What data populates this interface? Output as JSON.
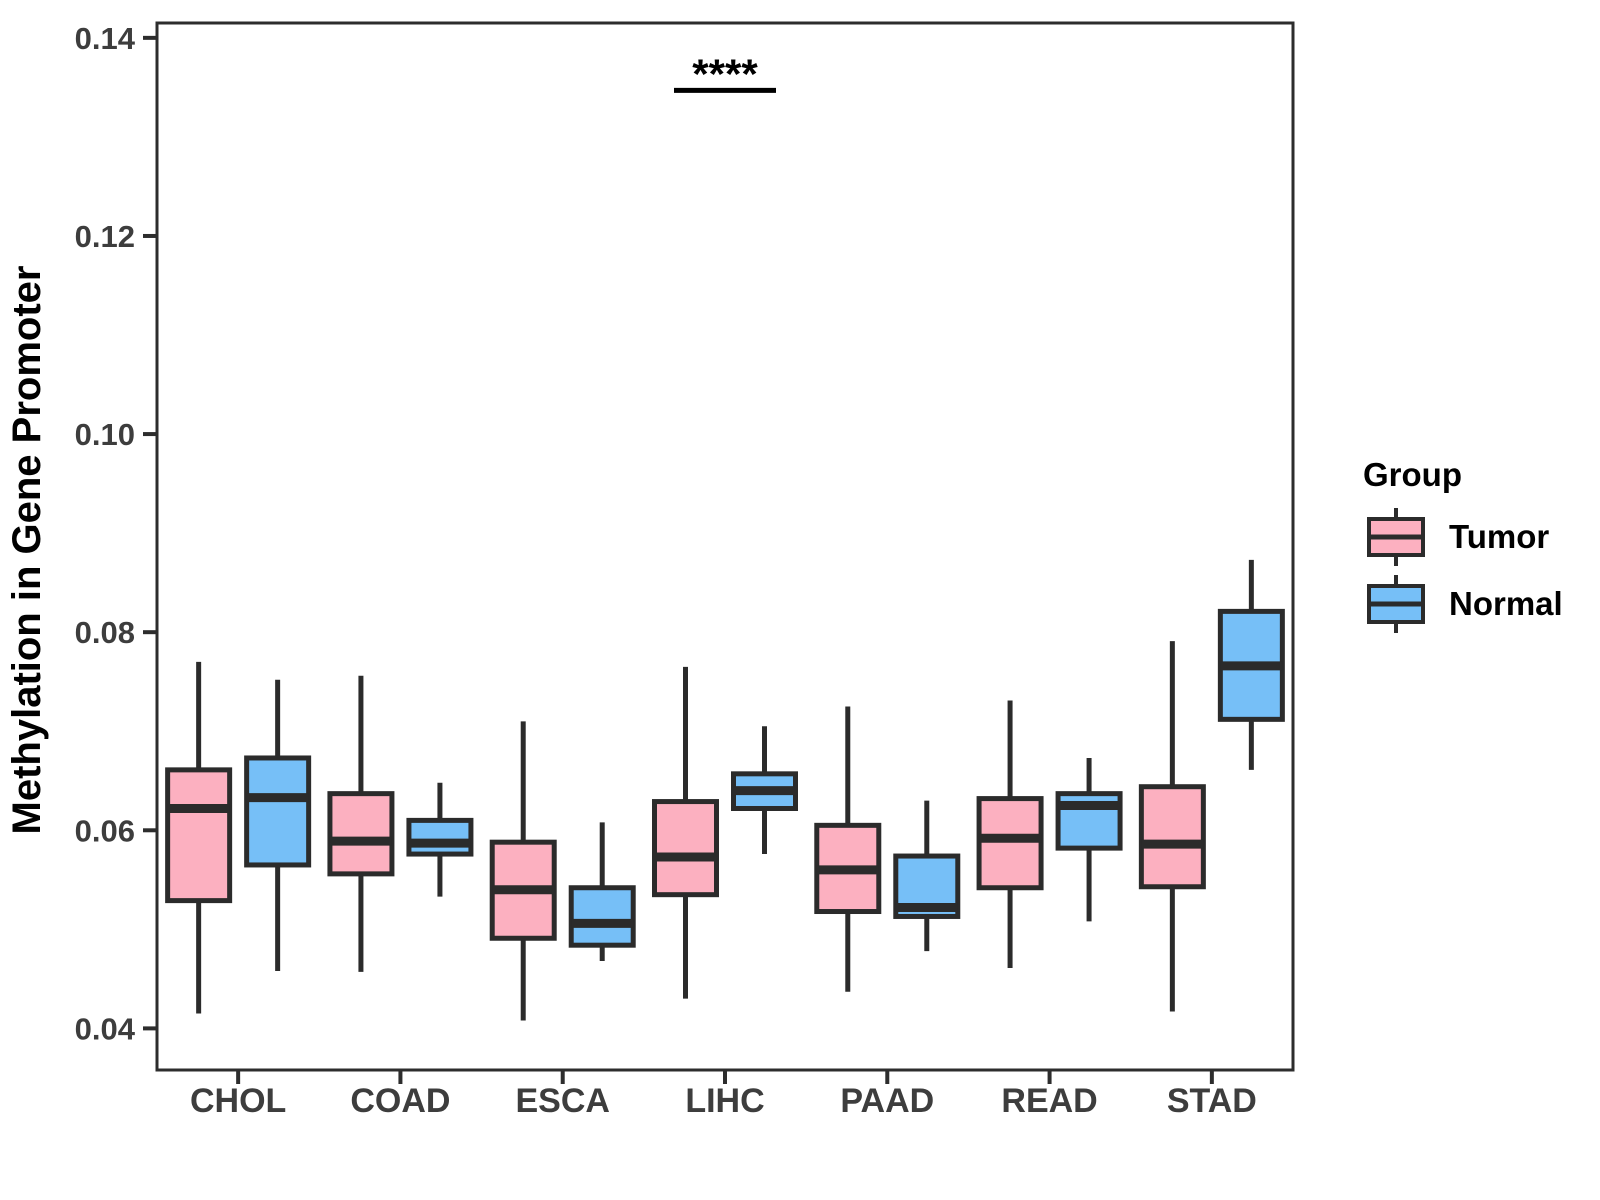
{
  "chart_data": {
    "type": "boxplot",
    "title": "",
    "xlabel": "",
    "ylabel": "Methylation in Gene Promoter",
    "categories": [
      "CHOL",
      "COAD",
      "ESCA",
      "LIHC",
      "PAAD",
      "READ",
      "STAD"
    ],
    "groups": [
      "Tumor",
      "Normal"
    ],
    "y_ticks": [
      0.04,
      0.06,
      0.08,
      0.1,
      0.12,
      0.14
    ],
    "y_tick_labels": [
      "0.04",
      "0.06",
      "0.08",
      "0.10",
      "0.12",
      "0.14"
    ],
    "ylim": [
      0.0358,
      0.1415
    ],
    "grid": false,
    "legend": {
      "title": "Group",
      "position": "right",
      "items": [
        "Tumor",
        "Normal"
      ]
    },
    "colors": {
      "Tumor": "#FCB0C0",
      "Normal": "#76BFF7",
      "box_stroke": "#2B2B2B",
      "axis": "#2D2D2D",
      "tick_label": "#3D3D3D",
      "text": "#000000"
    },
    "significance": {
      "text": "****",
      "category": "LIHC",
      "compares": [
        "Tumor",
        "Normal"
      ],
      "bar_y": 0.1347
    },
    "series": [
      {
        "name": "Tumor",
        "boxes": [
          {
            "category": "CHOL",
            "whisker_low": 0.0415,
            "q1": 0.0529,
            "median": 0.0622,
            "q3": 0.0661,
            "whisker_high": 0.077
          },
          {
            "category": "COAD",
            "whisker_low": 0.0457,
            "q1": 0.0556,
            "median": 0.0589,
            "q3": 0.0637,
            "whisker_high": 0.0756
          },
          {
            "category": "ESCA",
            "whisker_low": 0.0408,
            "q1": 0.0491,
            "median": 0.054,
            "q3": 0.0588,
            "whisker_high": 0.071
          },
          {
            "category": "LIHC",
            "whisker_low": 0.043,
            "q1": 0.0535,
            "median": 0.0573,
            "q3": 0.0629,
            "whisker_high": 0.0765
          },
          {
            "category": "PAAD",
            "whisker_low": 0.0437,
            "q1": 0.0518,
            "median": 0.056,
            "q3": 0.0605,
            "whisker_high": 0.0725
          },
          {
            "category": "READ",
            "whisker_low": 0.0461,
            "q1": 0.0542,
            "median": 0.0592,
            "q3": 0.0632,
            "whisker_high": 0.0731
          },
          {
            "category": "STAD",
            "whisker_low": 0.0417,
            "q1": 0.0543,
            "median": 0.0586,
            "q3": 0.0644,
            "whisker_high": 0.0791
          }
        ]
      },
      {
        "name": "Normal",
        "boxes": [
          {
            "category": "CHOL",
            "whisker_low": 0.0458,
            "q1": 0.0565,
            "median": 0.0633,
            "q3": 0.0673,
            "whisker_high": 0.0752
          },
          {
            "category": "COAD",
            "whisker_low": 0.0533,
            "q1": 0.0576,
            "median": 0.0587,
            "q3": 0.061,
            "whisker_high": 0.0648
          },
          {
            "category": "ESCA",
            "whisker_low": 0.0468,
            "q1": 0.0484,
            "median": 0.0506,
            "q3": 0.0542,
            "whisker_high": 0.0608
          },
          {
            "category": "LIHC",
            "whisker_low": 0.0576,
            "q1": 0.0622,
            "median": 0.064,
            "q3": 0.0657,
            "whisker_high": 0.0705
          },
          {
            "category": "PAAD",
            "whisker_low": 0.0478,
            "q1": 0.0513,
            "median": 0.0522,
            "q3": 0.0574,
            "whisker_high": 0.063
          },
          {
            "category": "READ",
            "whisker_low": 0.0508,
            "q1": 0.0582,
            "median": 0.0625,
            "q3": 0.0637,
            "whisker_high": 0.0673
          },
          {
            "category": "STAD",
            "whisker_low": 0.0661,
            "q1": 0.0712,
            "median": 0.0766,
            "q3": 0.0821,
            "whisker_high": 0.0873
          }
        ]
      }
    ]
  }
}
